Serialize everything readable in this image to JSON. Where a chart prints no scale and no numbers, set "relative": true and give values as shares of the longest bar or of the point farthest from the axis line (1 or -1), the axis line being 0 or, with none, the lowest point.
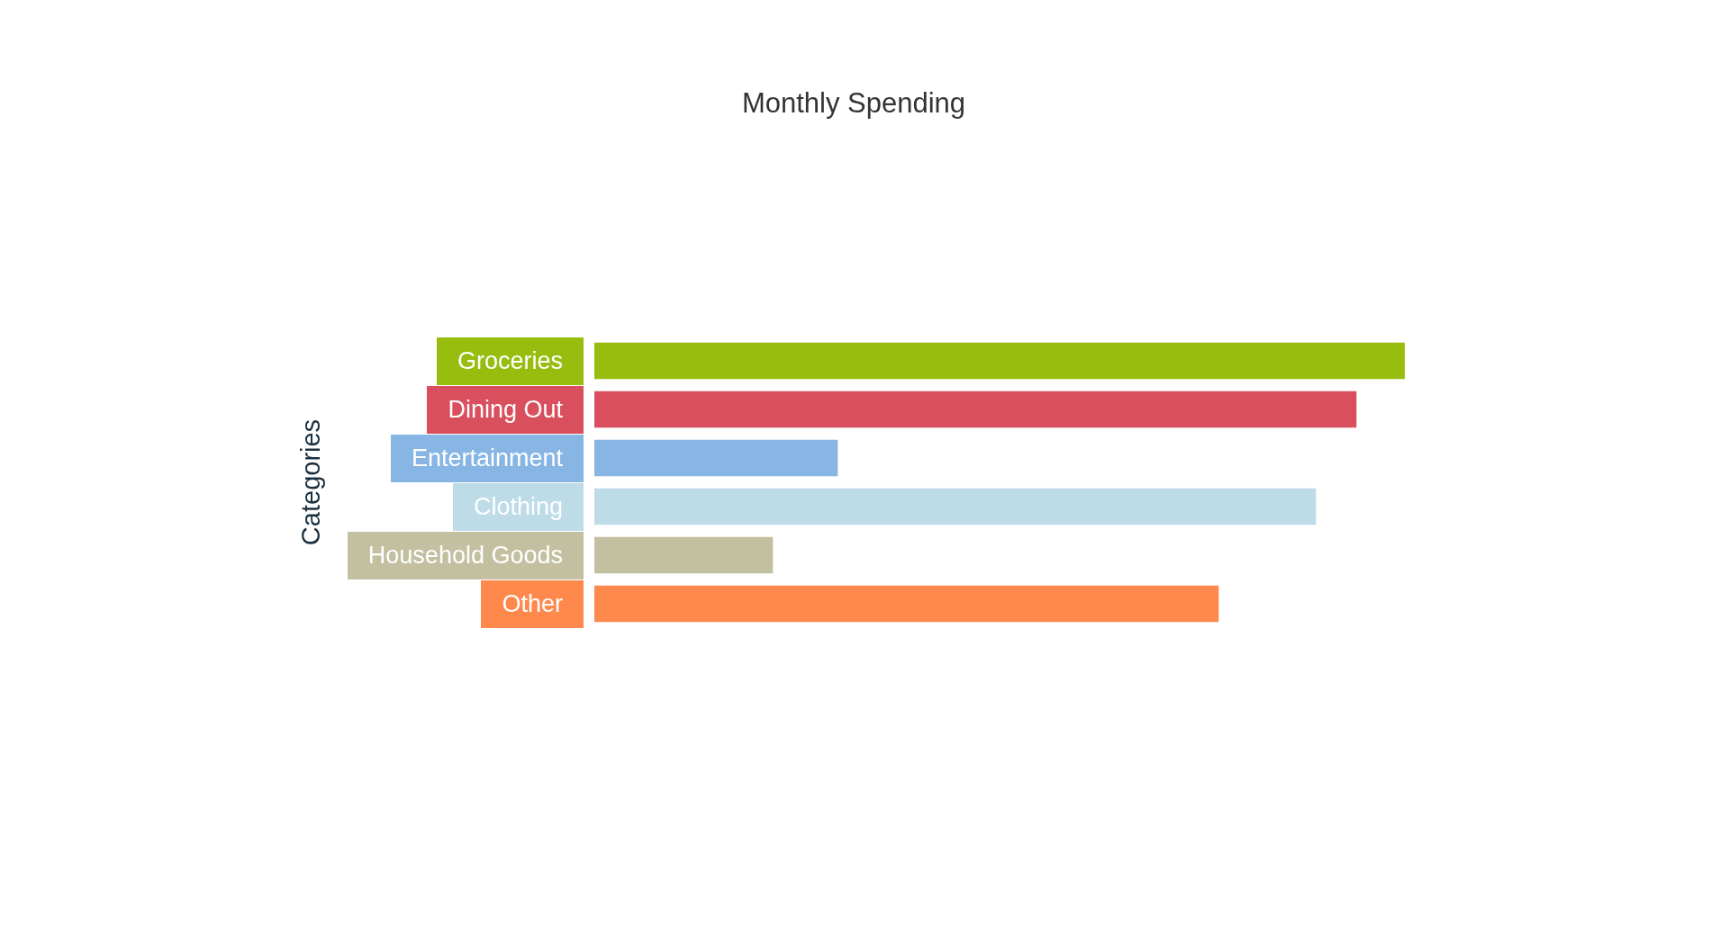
{
  "chart_data": {
    "type": "bar",
    "orientation": "horizontal",
    "title": "Monthly Spending",
    "ylabel": "Categories",
    "categories": [
      "Groceries",
      "Dining Out",
      "Entertainment",
      "Clothing",
      "Household Goods",
      "Other"
    ],
    "values": [
      1,
      0.94,
      0.3,
      0.89,
      0.22,
      0.77
    ],
    "colors": [
      "#98bd0e",
      "#d94f5e",
      "#87b5e4",
      "#bedbe8",
      "#c2c0a1",
      "#ff884c"
    ],
    "relative": true
  }
}
